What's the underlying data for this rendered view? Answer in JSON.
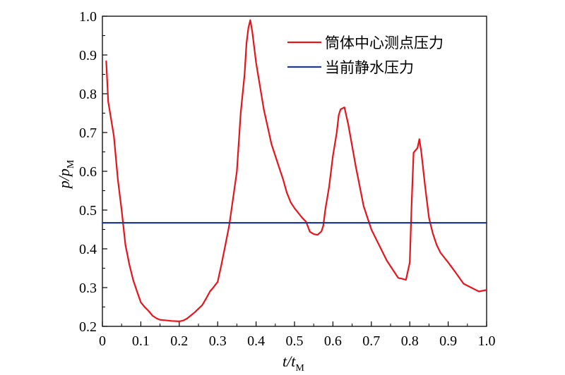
{
  "chart_data": {
    "type": "line",
    "xlabel": {
      "main": "t/t",
      "sub": "M"
    },
    "ylabel": {
      "main": "p/p",
      "sub": "M"
    },
    "xlim": [
      0,
      1.0
    ],
    "ylim": [
      0.2,
      1.0
    ],
    "x_ticks": [
      "0",
      "0.1",
      "0.2",
      "0.3",
      "0.4",
      "0.5",
      "0.6",
      "0.7",
      "0.8",
      "0.9",
      "1.0"
    ],
    "y_ticks": [
      "0.2",
      "0.3",
      "0.4",
      "0.5",
      "0.6",
      "0.7",
      "0.8",
      "0.9",
      "1.0"
    ],
    "x_tick_values": [
      0,
      0.1,
      0.2,
      0.3,
      0.4,
      0.5,
      0.6,
      0.7,
      0.8,
      0.9,
      1.0
    ],
    "y_tick_values": [
      0.2,
      0.3,
      0.4,
      0.5,
      0.6,
      0.7,
      0.8,
      0.9,
      1.0
    ],
    "legend_position": "top-right",
    "grid": false,
    "series": [
      {
        "name": "筒体中心测点压力",
        "color": "#e8141c",
        "x": [
          0.01,
          0.015,
          0.02,
          0.03,
          0.04,
          0.05,
          0.06,
          0.07,
          0.08,
          0.09,
          0.1,
          0.11,
          0.12,
          0.13,
          0.14,
          0.15,
          0.16,
          0.18,
          0.2,
          0.21,
          0.22,
          0.24,
          0.26,
          0.27,
          0.28,
          0.29,
          0.3,
          0.31,
          0.32,
          0.33,
          0.34,
          0.35,
          0.36,
          0.37,
          0.375,
          0.38,
          0.385,
          0.39,
          0.4,
          0.42,
          0.44,
          0.46,
          0.47,
          0.48,
          0.49,
          0.5,
          0.52,
          0.53,
          0.54,
          0.55,
          0.56,
          0.57,
          0.575,
          0.58,
          0.59,
          0.6,
          0.61,
          0.615,
          0.62,
          0.63,
          0.64,
          0.66,
          0.68,
          0.7,
          0.72,
          0.74,
          0.76,
          0.77,
          0.78,
          0.79,
          0.8,
          0.805,
          0.81,
          0.82,
          0.825,
          0.83,
          0.84,
          0.85,
          0.86,
          0.87,
          0.88,
          0.9,
          0.92,
          0.94,
          0.96,
          0.97,
          0.98,
          1.0
        ],
        "y": [
          0.884,
          0.78,
          0.75,
          0.69,
          0.58,
          0.5,
          0.41,
          0.36,
          0.32,
          0.29,
          0.262,
          0.25,
          0.24,
          0.228,
          0.221,
          0.217,
          0.216,
          0.214,
          0.213,
          0.215,
          0.22,
          0.236,
          0.255,
          0.272,
          0.29,
          0.302,
          0.315,
          0.36,
          0.41,
          0.46,
          0.53,
          0.6,
          0.75,
          0.85,
          0.93,
          0.97,
          0.99,
          0.96,
          0.88,
          0.76,
          0.67,
          0.61,
          0.58,
          0.545,
          0.52,
          0.505,
          0.48,
          0.47,
          0.444,
          0.438,
          0.436,
          0.445,
          0.46,
          0.5,
          0.56,
          0.64,
          0.7,
          0.745,
          0.76,
          0.765,
          0.72,
          0.61,
          0.51,
          0.45,
          0.41,
          0.37,
          0.34,
          0.325,
          0.323,
          0.32,
          0.365,
          0.52,
          0.648,
          0.66,
          0.683,
          0.65,
          0.56,
          0.48,
          0.44,
          0.41,
          0.39,
          0.365,
          0.338,
          0.31,
          0.3,
          0.295,
          0.29,
          0.294
        ]
      },
      {
        "name": "当前静水压力",
        "color": "#1f3b8c",
        "x": [
          0.0,
          1.0
        ],
        "y": [
          0.467,
          0.467
        ]
      }
    ]
  }
}
